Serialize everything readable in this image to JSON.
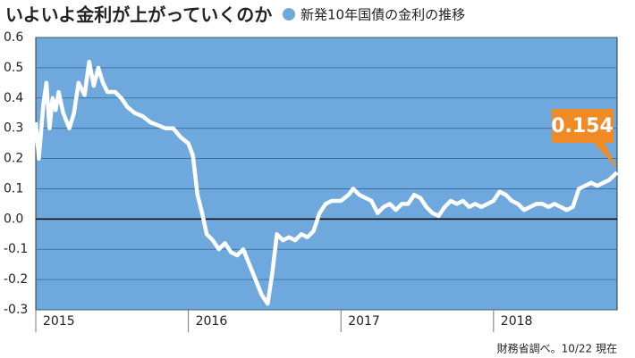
{
  "chart_data": {
    "type": "line",
    "title": "いよいよ金利が上がっていくのか",
    "note": "財務省調べ。10/22 現在",
    "plot_color": "#6fa8dc",
    "grid": true,
    "series": [
      {
        "name": "新発10年国債の金利の推移",
        "color": "#ffffff",
        "x": [
          2015.0,
          2015.02,
          2015.05,
          2015.07,
          2015.09,
          2015.11,
          2015.13,
          2015.15,
          2015.18,
          2015.22,
          2015.25,
          2015.28,
          2015.32,
          2015.35,
          2015.38,
          2015.41,
          2015.44,
          2015.47,
          2015.52,
          2015.56,
          2015.6,
          2015.65,
          2015.7,
          2015.75,
          2015.8,
          2015.85,
          2015.9,
          2015.95,
          2016.0,
          2016.03,
          2016.06,
          2016.09,
          2016.12,
          2016.16,
          2016.2,
          2016.24,
          2016.28,
          2016.32,
          2016.36,
          2016.4,
          2016.44,
          2016.48,
          2016.52,
          2016.55,
          2016.58,
          2016.62,
          2016.66,
          2016.7,
          2016.74,
          2016.78,
          2016.82,
          2016.86,
          2016.9,
          2016.94,
          2017.0,
          2017.05,
          2017.08,
          2017.12,
          2017.16,
          2017.2,
          2017.24,
          2017.28,
          2017.32,
          2017.36,
          2017.4,
          2017.44,
          2017.48,
          2017.52,
          2017.56,
          2017.6,
          2017.64,
          2017.68,
          2017.72,
          2017.76,
          2017.8,
          2017.84,
          2017.88,
          2017.92,
          2017.96,
          2018.0,
          2018.04,
          2018.08,
          2018.12,
          2018.16,
          2018.2,
          2018.24,
          2018.28,
          2018.32,
          2018.36,
          2018.4,
          2018.44,
          2018.48,
          2018.52,
          2018.56,
          2018.6,
          2018.64,
          2018.68,
          2018.72,
          2018.76,
          2018.81
        ],
        "values": [
          0.32,
          0.2,
          0.38,
          0.45,
          0.3,
          0.4,
          0.36,
          0.42,
          0.35,
          0.3,
          0.35,
          0.45,
          0.41,
          0.52,
          0.44,
          0.5,
          0.45,
          0.42,
          0.42,
          0.4,
          0.37,
          0.35,
          0.34,
          0.32,
          0.31,
          0.3,
          0.3,
          0.27,
          0.25,
          0.21,
          0.08,
          0.02,
          -0.05,
          -0.07,
          -0.1,
          -0.08,
          -0.11,
          -0.12,
          -0.1,
          -0.15,
          -0.2,
          -0.25,
          -0.28,
          -0.18,
          -0.05,
          -0.07,
          -0.06,
          -0.07,
          -0.05,
          -0.06,
          -0.04,
          0.02,
          0.05,
          0.06,
          0.06,
          0.08,
          0.1,
          0.08,
          0.07,
          0.06,
          0.02,
          0.04,
          0.05,
          0.03,
          0.05,
          0.05,
          0.08,
          0.07,
          0.04,
          0.02,
          0.01,
          0.04,
          0.06,
          0.05,
          0.06,
          0.04,
          0.05,
          0.04,
          0.05,
          0.06,
          0.09,
          0.08,
          0.06,
          0.05,
          0.03,
          0.04,
          0.05,
          0.05,
          0.04,
          0.05,
          0.04,
          0.03,
          0.04,
          0.1,
          0.11,
          0.12,
          0.11,
          0.12,
          0.13,
          0.154
        ]
      }
    ],
    "xlim": [
      2015,
      2018.81
    ],
    "xticks": [
      2015,
      2016,
      2017,
      2018
    ],
    "ylim": [
      -0.3,
      0.6
    ],
    "yticks": [
      0.6,
      0.5,
      0.4,
      0.3,
      0.2,
      0.1,
      {
        "value": 0,
        "label": "0.0"
      },
      -0.1,
      -0.2,
      -0.3
    ]
  }
}
